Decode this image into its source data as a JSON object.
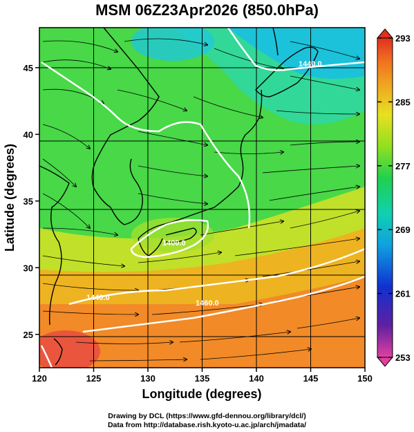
{
  "title": "MSM 06Z23Apr2026 (850.0hPa)",
  "map": {
    "xlabel": "Longitude (degrees)",
    "ylabel": "Latitude  (degrees)",
    "lon_range": [
      120,
      150
    ],
    "lat_range": [
      22.5,
      48
    ],
    "lon_ticks": [
      120,
      125,
      130,
      135,
      140,
      145,
      150
    ],
    "lat_ticks": [
      25,
      30,
      35,
      40,
      45
    ],
    "field": "temperature (K) shaded, wind streamlines, 850 hPa geopotential height contours",
    "contour_labels": [
      {
        "text": "1440.0",
        "lon": 125.3,
        "lat": 28.9
      },
      {
        "text": "1460.0",
        "lon": 140.8,
        "lat": 28.0
      },
      {
        "text": "1400.0",
        "lon": 133.5,
        "lat": 32.0
      },
      {
        "text": "1440.0",
        "lon": 146.0,
        "lat": 45.3
      }
    ]
  },
  "colorbar": {
    "min": 253,
    "max": 293,
    "tick_labels": [
      "293",
      "285",
      "277",
      "269",
      "261",
      "253"
    ],
    "tick_values": [
      293,
      285,
      277,
      269,
      261,
      253
    ],
    "colors": [
      "#e05090",
      "#5030a0",
      "#2040e0",
      "#10a0e0",
      "#10d0c0",
      "#20d050",
      "#80e020",
      "#e0e020",
      "#f0a020",
      "#f07020",
      "#e03020"
    ]
  },
  "credits": {
    "line1": "Drawing by DCL (https://www.gfd-dennou.org/library/dcl/)",
    "line2": "Data from http://database.rish.kyoto-u.ac.jp/arch/jmadata/"
  }
}
